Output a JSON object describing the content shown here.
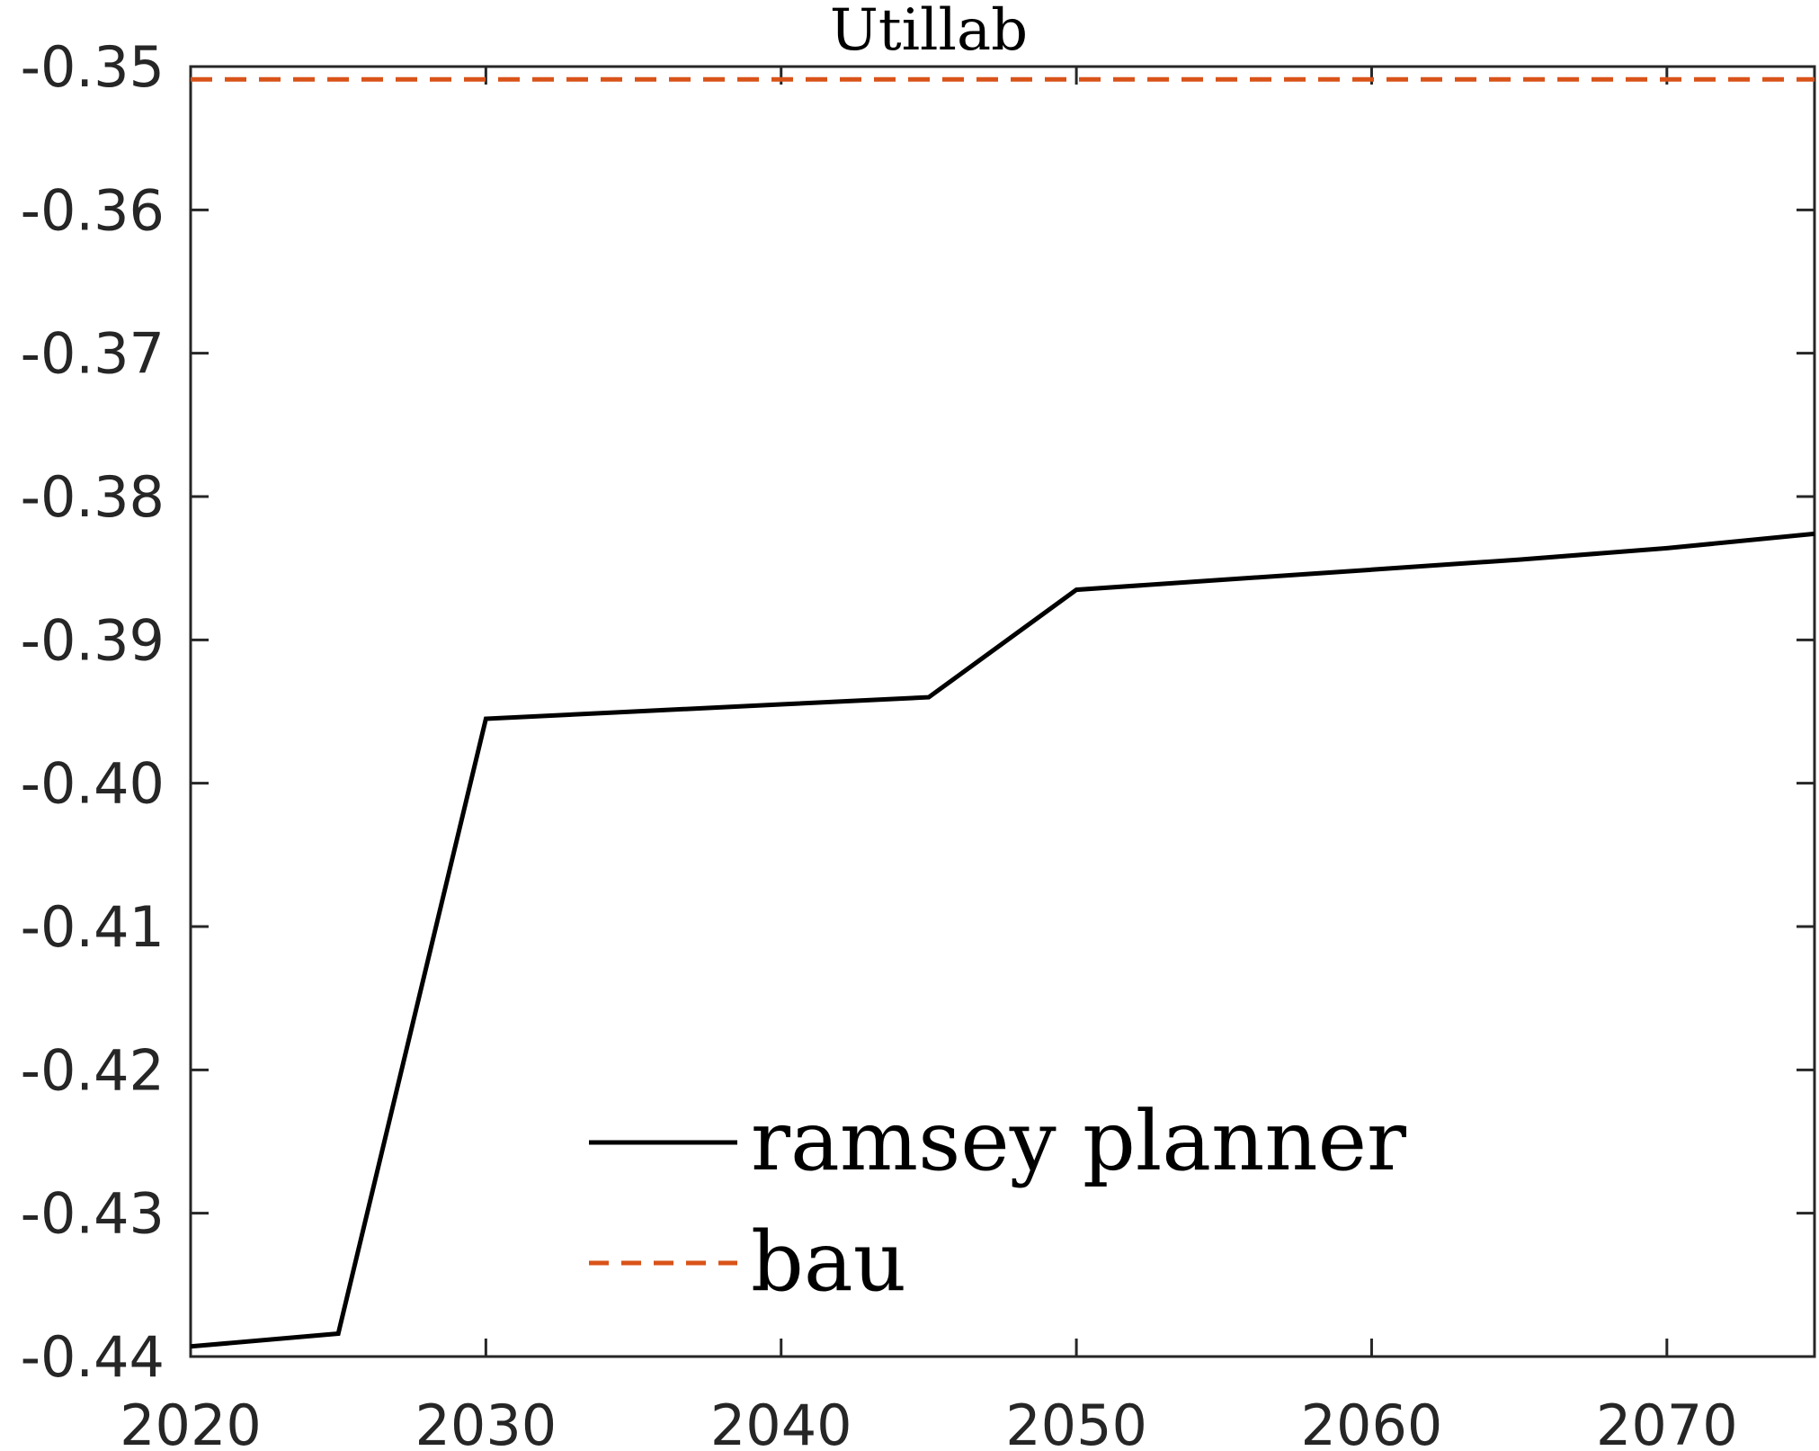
{
  "chart_data": {
    "type": "line",
    "title": "Utillab",
    "xlabel": "",
    "ylabel": "",
    "xlim": [
      2020,
      2075
    ],
    "ylim": [
      -0.44,
      -0.35
    ],
    "xticks": [
      2020,
      2030,
      2040,
      2050,
      2060,
      2070
    ],
    "yticks": [
      -0.35,
      -0.36,
      -0.37,
      -0.38,
      -0.39,
      -0.4,
      -0.41,
      -0.42,
      -0.43,
      -0.44
    ],
    "xtick_labels": [
      "2020",
      "2030",
      "2040",
      "2050",
      "2060",
      "2070"
    ],
    "ytick_labels": [
      "-0.35",
      "-0.36",
      "-0.37",
      "-0.38",
      "-0.39",
      "-0.40",
      "-0.41",
      "-0.42",
      "-0.43",
      "-0.44"
    ],
    "grid": false,
    "legend_position": "bottom-center",
    "series": [
      {
        "name": "ramsey planner",
        "color": "#000000",
        "style": "solid",
        "x": [
          2020,
          2025,
          2030,
          2035,
          2040,
          2045,
          2050,
          2055,
          2060,
          2065,
          2070,
          2075
        ],
        "y": [
          -0.4393,
          -0.4384,
          -0.3955,
          -0.395,
          -0.3945,
          -0.394,
          -0.3865,
          -0.3858,
          -0.3851,
          -0.3844,
          -0.3836,
          -0.3826
        ]
      },
      {
        "name": "bau",
        "color": "#D95319",
        "style": "dashed",
        "x": [
          2020,
          2075
        ],
        "y": [
          -0.3509,
          -0.3509
        ]
      }
    ]
  }
}
